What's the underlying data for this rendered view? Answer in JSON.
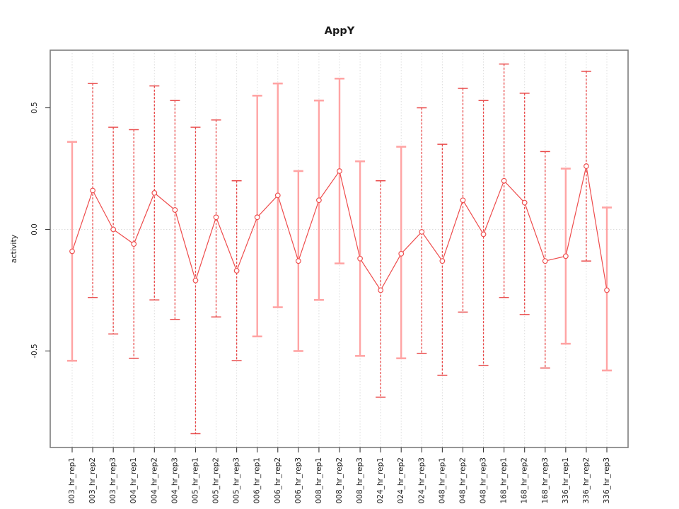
{
  "chart_data": {
    "type": "line",
    "title": "AppY",
    "xlabel": "",
    "ylabel": "activity",
    "ylim": [
      -0.9,
      0.74
    ],
    "grid": "dotted vertical gridline per category; dotted horizontal line at 0",
    "legend": "none",
    "point_marker": "open-circle",
    "yticks": [
      {
        "label": "0.5",
        "value": 0.5
      },
      {
        "label": "0.0",
        "value": 0.0
      },
      {
        "label": "-0.5",
        "value": -0.5
      }
    ],
    "categories": [
      "003_hr_rep1",
      "003_hr_rep2",
      "003_hr_rep3",
      "004_hr_rep1",
      "004_hr_rep2",
      "004_hr_rep3",
      "005_hr_rep1",
      "005_hr_rep2",
      "005_hr_rep3",
      "006_hr_rep1",
      "006_hr_rep2",
      "006_hr_rep3",
      "008_hr_rep1",
      "008_hr_rep2",
      "008_hr_rep3",
      "024_hr_rep1",
      "024_hr_rep2",
      "024_hr_rep3",
      "048_hr_rep1",
      "048_hr_rep2",
      "048_hr_rep3",
      "168_hr_rep1",
      "168_hr_rep2",
      "168_hr_rep3",
      "336_hr_rep1",
      "336_hr_rep2",
      "336_hr_rep3"
    ],
    "series": [
      {
        "name": "activity",
        "values": [
          -0.09,
          0.16,
          0.0,
          -0.06,
          0.15,
          0.08,
          -0.21,
          0.05,
          -0.17,
          0.05,
          0.14,
          -0.13,
          0.12,
          0.24,
          -0.12,
          -0.25,
          -0.1,
          -0.01,
          -0.13,
          0.12,
          -0.02,
          0.2,
          0.11,
          -0.13,
          -0.11,
          0.26,
          -0.25
        ],
        "error_high": [
          0.36,
          0.6,
          0.42,
          0.41,
          0.59,
          0.53,
          0.42,
          0.45,
          0.2,
          0.55,
          0.6,
          0.24,
          0.53,
          0.62,
          0.28,
          0.2,
          0.34,
          0.5,
          0.35,
          0.58,
          0.53,
          0.68,
          0.56,
          0.32,
          0.25,
          0.65,
          0.09
        ],
        "error_low": [
          -0.54,
          -0.28,
          -0.43,
          -0.53,
          -0.29,
          -0.37,
          -0.84,
          -0.36,
          -0.54,
          -0.44,
          -0.32,
          -0.5,
          -0.29,
          -0.14,
          -0.52,
          -0.69,
          -0.53,
          -0.51,
          -0.6,
          -0.34,
          -0.56,
          -0.28,
          -0.35,
          -0.57,
          -0.47,
          -0.13,
          -0.58
        ],
        "bar_styles": [
          "solid",
          "dashed",
          "dashed",
          "dashed",
          "dashed",
          "dashed",
          "dashed",
          "dashed",
          "dashed",
          "solid",
          "solid",
          "solid",
          "solid",
          "solid",
          "solid",
          "dashed",
          "solid",
          "dashed",
          "dashed",
          "dashed",
          "dashed",
          "dashed",
          "dashed",
          "dashed",
          "solid",
          "dashed",
          "solid"
        ]
      }
    ],
    "colors": {
      "point": "#ee4c4c",
      "series_line": "#ee4c4c",
      "error_bar_dashed": "#e94747",
      "error_bar_solid": "#ffa4a4",
      "gridline": "#dcdcdc",
      "axis_tick": "#3a3a3a",
      "plot_border": "#7d7d7d",
      "label_text": "#1a1a1a"
    }
  }
}
